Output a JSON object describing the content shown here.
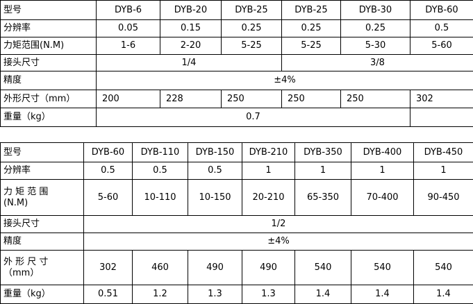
{
  "tables": [
    {
      "rows": [
        {
          "label": [
            "型号"
          ],
          "cells": [
            "DYB-6",
            "DYB-20",
            "DYB-25",
            "DYB-25",
            "DYB-30",
            "DYB-60"
          ]
        },
        {
          "label": [
            "分辨率"
          ],
          "cells": [
            "0.05",
            "0.15",
            "0.25",
            "0.25",
            "0.25",
            "0.5"
          ]
        },
        {
          "label": [
            "力矩范围(N.M)"
          ],
          "cells": [
            "1-6",
            "2-20",
            "5-25",
            "5-25",
            "5-30",
            "5-60"
          ]
        },
        {
          "label": [
            "接头尺寸"
          ],
          "cells": [
            "1/4",
            "3/8"
          ]
        },
        {
          "label": [
            "精度"
          ],
          "cells": [
            "±4%"
          ]
        },
        {
          "label": [
            "外形尺寸（mm）"
          ],
          "cells": [
            "200",
            "228",
            "250",
            "250",
            "250",
            "302"
          ]
        },
        {
          "label": [
            "重量（kg）"
          ],
          "cells": [
            "0.7"
          ]
        }
      ]
    },
    {
      "rows": [
        {
          "label": [
            "型号"
          ],
          "cells": [
            "DYB-60",
            "DYB-110",
            "DYB-150",
            "DYB-210",
            "DYB-350",
            "DYB-400",
            "DYB-450"
          ]
        },
        {
          "label": [
            "分辨率"
          ],
          "cells": [
            "0.5",
            "0.5",
            "0.5",
            "1",
            "1",
            "1",
            "1"
          ]
        },
        {
          "label": [
            "力 矩 范 围",
            "(N.M)"
          ],
          "cells": [
            "5-60",
            "10-110",
            "10-150",
            "20-210",
            "65-350",
            "70-400",
            "90-450"
          ]
        },
        {
          "label": [
            "接头尺寸"
          ],
          "cells": [
            "1/2"
          ]
        },
        {
          "label": [
            "精度"
          ],
          "cells": [
            "±4%"
          ]
        },
        {
          "label": [
            "外 形 尺 寸",
            "（mm）"
          ],
          "cells": [
            "302",
            "460",
            "490",
            "490",
            "540",
            "540",
            "540"
          ]
        },
        {
          "label": [
            "重量（kg）"
          ],
          "cells": [
            "0.51",
            "1.2",
            "1.3",
            "1.3",
            "1.4",
            "1.4",
            "1.4"
          ]
        }
      ]
    }
  ]
}
